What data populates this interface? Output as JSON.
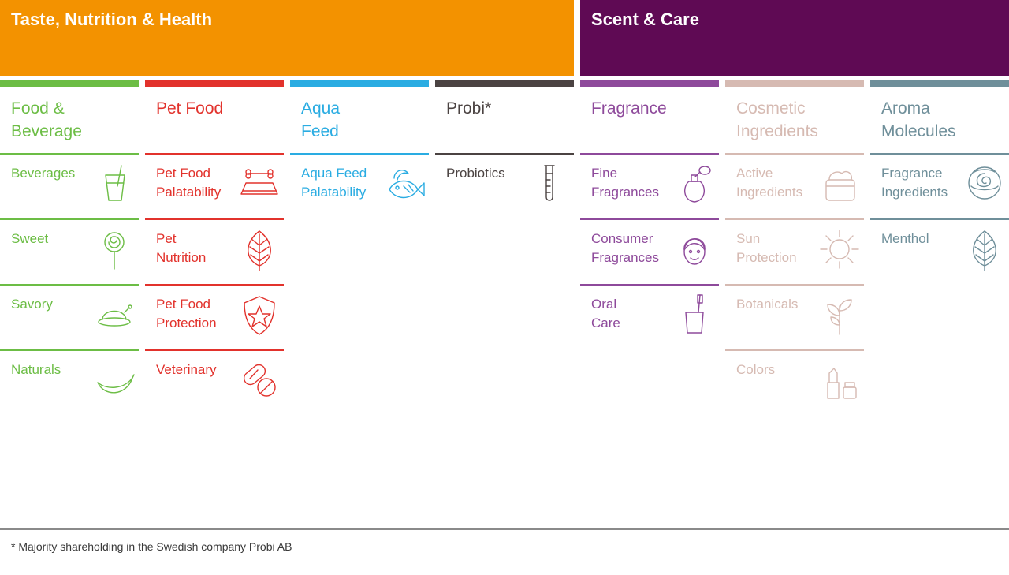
{
  "groups": {
    "tnh": {
      "title": "Taste, Nutrition & Health",
      "color": "#f39200"
    },
    "sc": {
      "title": "Scent & Care",
      "color": "#5f0a54"
    }
  },
  "columns": [
    {
      "title": "Food &\nBeverage",
      "color": "#6cbd45",
      "items": [
        {
          "label": "Beverages",
          "icon": "glass-straw-icon"
        },
        {
          "label": "Sweet",
          "icon": "lollipop-icon"
        },
        {
          "label": "Savory",
          "icon": "roast-chicken-icon"
        },
        {
          "label": "Naturals",
          "icon": "banana-icon"
        }
      ]
    },
    {
      "title": "Pet Food",
      "color": "#e2322c",
      "items": [
        {
          "label": "Pet Food\nPalatability",
          "icon": "bone-bowl-icon"
        },
        {
          "label": "Pet\nNutrition",
          "icon": "leaf-icon"
        },
        {
          "label": "Pet Food\nProtection",
          "icon": "shield-star-icon"
        },
        {
          "label": "Veterinary",
          "icon": "pills-icon"
        }
      ]
    },
    {
      "title": "Aqua\nFeed",
      "color": "#2aace2",
      "items": [
        {
          "label": "Aqua Feed\nPalatability",
          "icon": "fish-icon"
        }
      ]
    },
    {
      "title": "Probi*",
      "color": "#4b4342",
      "items": [
        {
          "label": "Probiotics",
          "icon": "test-tube-icon"
        }
      ]
    },
    {
      "title": "Fragrance",
      "color": "#8e4a9b",
      "items": [
        {
          "label": "Fine\nFragrances",
          "icon": "perfume-bottle-icon"
        },
        {
          "label": "Consumer\nFragrances",
          "icon": "face-icon"
        },
        {
          "label": "Oral\nCare",
          "icon": "toothbrush-cup-icon"
        }
      ]
    },
    {
      "title": "Cosmetic\nIngredients",
      "color": "#d6bab2",
      "items": [
        {
          "label": "Active\nIngredients",
          "icon": "cream-jar-icon"
        },
        {
          "label": "Sun\nProtection",
          "icon": "sun-icon"
        },
        {
          "label": "Botanicals",
          "icon": "sprout-icon"
        },
        {
          "label": "Colors",
          "icon": "lipstick-icon"
        }
      ]
    },
    {
      "title": "Aroma\nMolecules",
      "color": "#6f8f9a",
      "items": [
        {
          "label": "Fragrance\nIngredients",
          "icon": "rose-icon"
        },
        {
          "label": "Menthol",
          "icon": "leaf-icon"
        }
      ]
    }
  ],
  "footnote": "* Majority shareholding in the Swedish company Probi AB"
}
